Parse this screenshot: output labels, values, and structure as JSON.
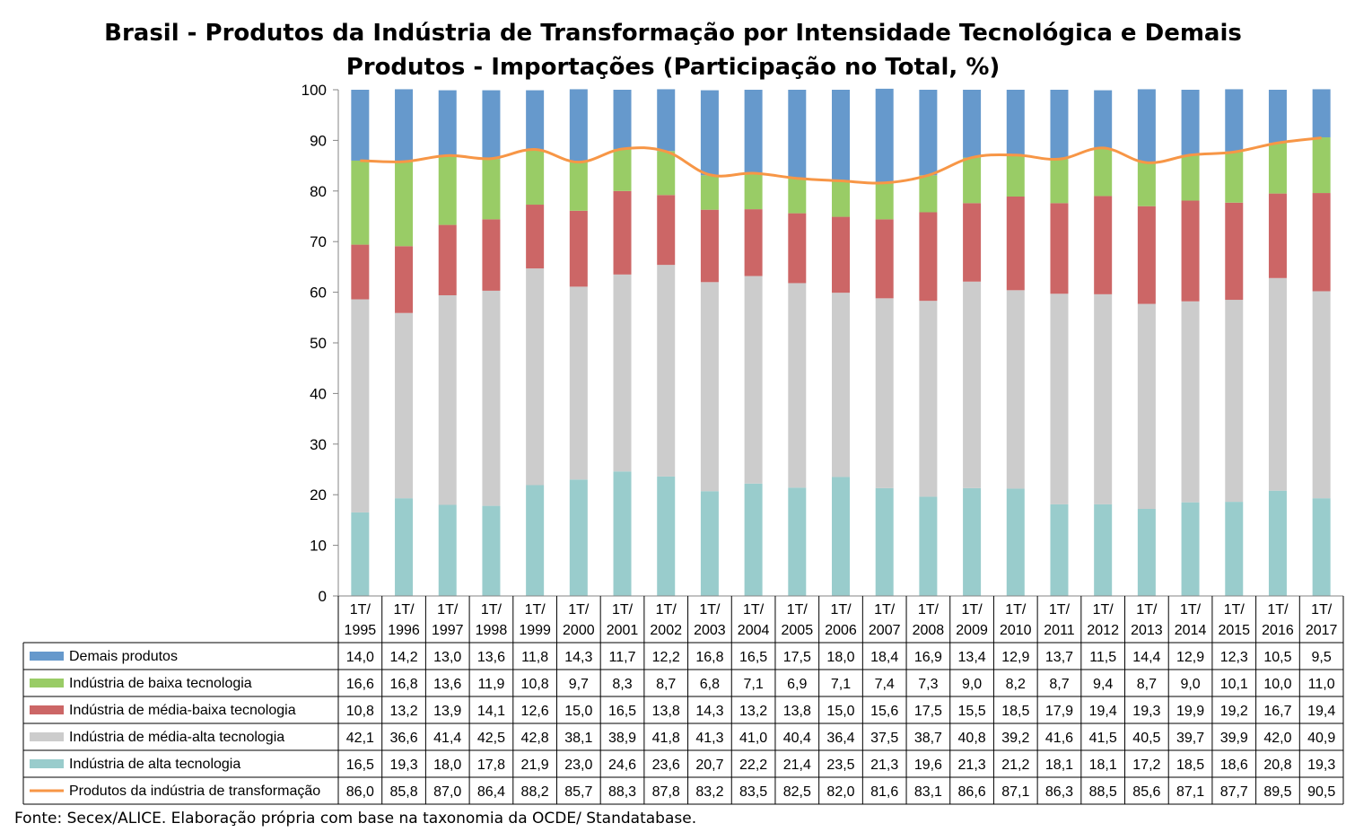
{
  "chart_data": {
    "type": "bar",
    "stacked": true,
    "title": "Brasil - Produtos da Indústria de Transformação por Intensidade Tecnológica e Demais Produtos - Importações (Participação no Total, %)",
    "title_lines": [
      "Brasil - Produtos da Indústria de Transformação por Intensidade Tecnológica e Demais",
      "Produtos - Importações (Participação no Total, %)"
    ],
    "categories": [
      "1T/ 1995",
      "1T/ 1996",
      "1T/ 1997",
      "1T/ 1998",
      "1T/ 1999",
      "1T/ 2000",
      "1T/ 2001",
      "1T/ 2002",
      "1T/ 2003",
      "1T/ 2004",
      "1T/ 2005",
      "1T/ 2006",
      "1T/ 2007",
      "1T/ 2008",
      "1T/ 2009",
      "1T/ 2010",
      "1T/ 2011",
      "1T/ 2012",
      "1T/ 2013",
      "1T/ 2014",
      "1T/ 2015",
      "1T/ 2016",
      "1T/ 2017"
    ],
    "category_lines": [
      [
        "1T/",
        "1995"
      ],
      [
        "1T/",
        "1996"
      ],
      [
        "1T/",
        "1997"
      ],
      [
        "1T/",
        "1998"
      ],
      [
        "1T/",
        "1999"
      ],
      [
        "1T/",
        "2000"
      ],
      [
        "1T/",
        "2001"
      ],
      [
        "1T/",
        "2002"
      ],
      [
        "1T/",
        "2003"
      ],
      [
        "1T/",
        "2004"
      ],
      [
        "1T/",
        "2005"
      ],
      [
        "1T/",
        "2006"
      ],
      [
        "1T/",
        "2007"
      ],
      [
        "1T/",
        "2008"
      ],
      [
        "1T/",
        "2009"
      ],
      [
        "1T/",
        "2010"
      ],
      [
        "1T/",
        "2011"
      ],
      [
        "1T/",
        "2012"
      ],
      [
        "1T/",
        "2013"
      ],
      [
        "1T/",
        "2014"
      ],
      [
        "1T/",
        "2015"
      ],
      [
        "1T/",
        "2016"
      ],
      [
        "1T/",
        "2017"
      ]
    ],
    "ylim": [
      0,
      100
    ],
    "yticks": [
      0,
      10,
      20,
      30,
      40,
      50,
      60,
      70,
      80,
      90,
      100
    ],
    "grid": false,
    "legend": "data-table",
    "series": [
      {
        "name": "Demais produtos",
        "kind": "bar",
        "color": "#6699CC",
        "values": [
          14.0,
          14.2,
          13.0,
          13.6,
          11.8,
          14.3,
          11.7,
          12.2,
          16.8,
          16.5,
          17.5,
          18.0,
          18.4,
          16.9,
          13.4,
          12.9,
          13.7,
          11.5,
          14.4,
          12.9,
          12.3,
          10.5,
          9.5
        ]
      },
      {
        "name": "Indústria de baixa tecnologia",
        "kind": "bar",
        "color": "#99CC66",
        "values": [
          16.6,
          16.8,
          13.6,
          11.9,
          10.8,
          9.7,
          8.3,
          8.7,
          6.8,
          7.1,
          6.9,
          7.1,
          7.4,
          7.3,
          9.0,
          8.2,
          8.7,
          9.4,
          8.7,
          9.0,
          10.1,
          10.0,
          11.0
        ]
      },
      {
        "name": "Indústria de média-baixa tecnologia",
        "kind": "bar",
        "color": "#CC6666",
        "values": [
          10.8,
          13.2,
          13.9,
          14.1,
          12.6,
          15.0,
          16.5,
          13.8,
          14.3,
          13.2,
          13.8,
          15.0,
          15.6,
          17.5,
          15.5,
          18.5,
          17.9,
          19.4,
          19.3,
          19.9,
          19.2,
          16.7,
          19.4
        ]
      },
      {
        "name": "Indústria de média-alta tecnologia",
        "kind": "bar",
        "color": "#CCCCCC",
        "values": [
          42.1,
          36.6,
          41.4,
          42.5,
          42.8,
          38.1,
          38.9,
          41.8,
          41.3,
          41.0,
          40.4,
          36.4,
          37.5,
          38.7,
          40.8,
          39.2,
          41.6,
          41.5,
          40.5,
          39.7,
          39.9,
          42.0,
          40.9
        ]
      },
      {
        "name": "Indústria de alta tecnologia",
        "kind": "bar",
        "color": "#99CCCC",
        "values": [
          16.5,
          19.3,
          18.0,
          17.8,
          21.9,
          23.0,
          24.6,
          23.6,
          20.7,
          22.2,
          21.4,
          23.5,
          21.3,
          19.6,
          21.3,
          21.2,
          18.1,
          18.1,
          17.2,
          18.5,
          18.6,
          20.8,
          19.3
        ]
      },
      {
        "name": "Produtos da indústria de transformação",
        "kind": "line",
        "color": "#F79646",
        "values": [
          86.0,
          85.8,
          87.0,
          86.4,
          88.2,
          85.7,
          88.3,
          87.8,
          83.2,
          83.5,
          82.5,
          82.0,
          81.6,
          83.1,
          86.6,
          87.1,
          86.3,
          88.5,
          85.6,
          87.1,
          87.7,
          89.5,
          90.5
        ]
      }
    ]
  },
  "footer": "Fonte: Secex/ALICE. Elaboração própria com base na taxonomia da OCDE/ Standatabase."
}
